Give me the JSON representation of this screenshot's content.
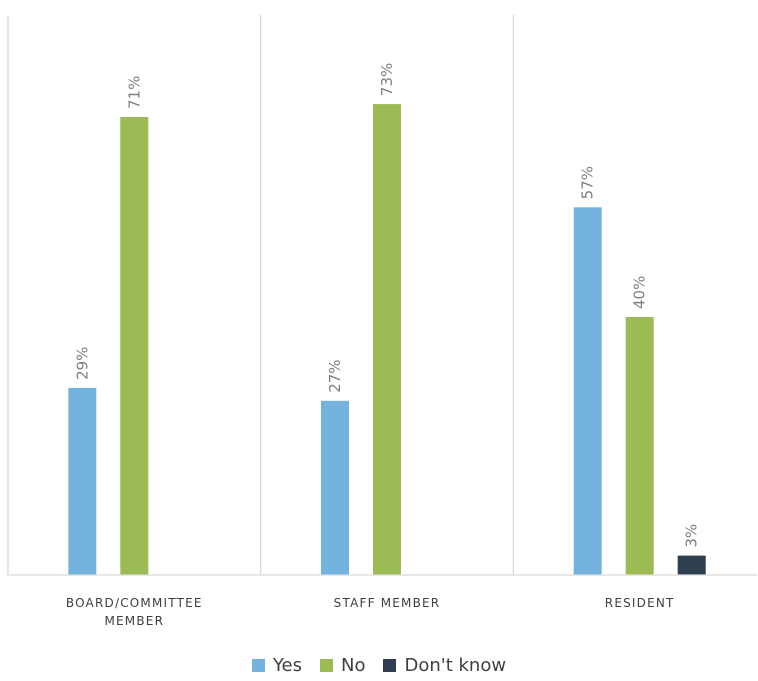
{
  "chart_data": {
    "type": "bar",
    "categories": [
      "BOARD/COMMITTEE MEMBER",
      "STAFF MEMBER",
      "RESIDENT"
    ],
    "category_lines": [
      [
        "BOARD/COMMITTEE",
        "MEMBER"
      ],
      [
        "STAFF MEMBER"
      ],
      [
        "RESIDENT"
      ]
    ],
    "series": [
      {
        "name": "Yes",
        "values": [
          29,
          27,
          57
        ],
        "labels": [
          "29%",
          "27%",
          "57%"
        ],
        "color": "#74b3de"
      },
      {
        "name": "No",
        "values": [
          71,
          73,
          40
        ],
        "labels": [
          "71%",
          "73%",
          "40%"
        ],
        "color": "#9dbb55"
      },
      {
        "name": "Don't know",
        "values": [
          null,
          null,
          3
        ],
        "labels": [
          null,
          null,
          "3%"
        ],
        "color": "#2c3e50"
      }
    ],
    "ylim": [
      0,
      80
    ],
    "y_axis_visible": false,
    "grid": false,
    "category_separators": true,
    "legend_position": "bottom",
    "data_label_rotation": "vertical"
  }
}
